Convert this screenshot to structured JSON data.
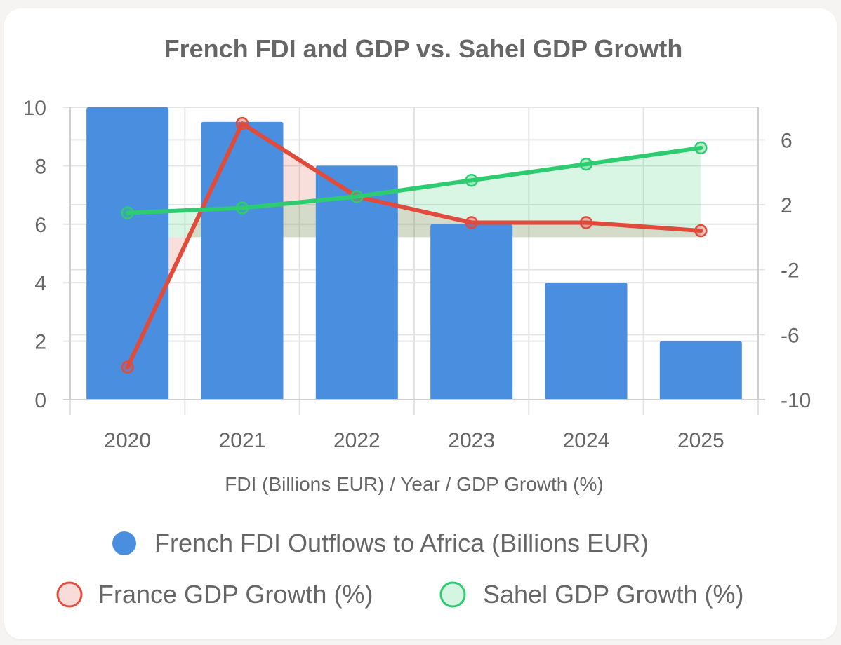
{
  "chart_data": {
    "type": "bar",
    "title": "French FDI and GDP vs. Sahel GDP Growth",
    "xlabel": "FDI (Billions EUR) / Year / GDP Growth (%)",
    "categories": [
      "2020",
      "2021",
      "2022",
      "2023",
      "2024",
      "2025"
    ],
    "y_left": {
      "min": 0,
      "max": 10,
      "ticks": [
        "0",
        "2",
        "4",
        "6",
        "8",
        "10"
      ]
    },
    "y_right": {
      "min": -10,
      "max": 8,
      "ticks": [
        "-10",
        "-6",
        "-2",
        "2",
        "6"
      ]
    },
    "grid": true,
    "legend_position": "bottom",
    "series": [
      {
        "name": "French FDI Outflows to Africa (Billions EUR)",
        "type": "bar",
        "axis": "left",
        "values": [
          10,
          9.5,
          8,
          6,
          4,
          2
        ],
        "color": "#4a8fdf"
      },
      {
        "name": "France GDP Growth (%)",
        "type": "line",
        "axis": "right",
        "fill": true,
        "values": [
          -8,
          7,
          2.5,
          0.9,
          0.9,
          0.4
        ],
        "color": "#e04b3c",
        "fill_color": "rgba(224,75,60,0.18)"
      },
      {
        "name": "Sahel GDP Growth (%)",
        "type": "line",
        "axis": "right",
        "fill": true,
        "values": [
          1.5,
          1.8,
          2.5,
          3.5,
          4.5,
          5.5
        ],
        "color": "#2ecc71",
        "fill_color": "rgba(46,204,113,0.18)"
      }
    ]
  }
}
